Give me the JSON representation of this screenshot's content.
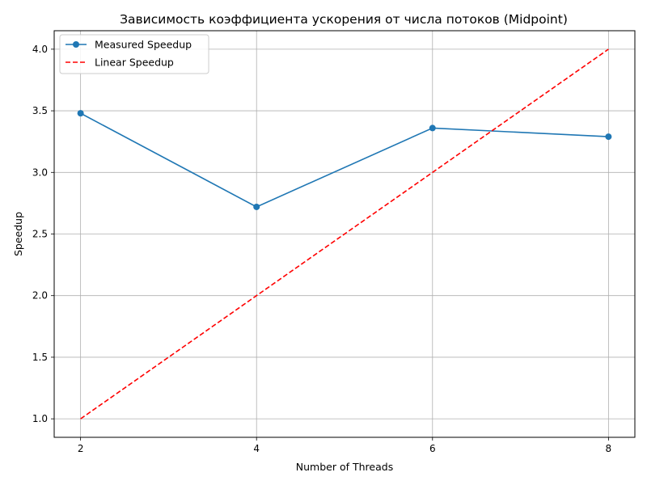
{
  "chart_data": {
    "type": "line",
    "title": "Зависимость коэффициента ускорения от числа потоков (Midpoint)",
    "xlabel": "Number of Threads",
    "ylabel": "Speedup",
    "x": [
      2,
      4,
      6,
      8
    ],
    "xticks": [
      "2",
      "4",
      "6",
      "8"
    ],
    "yticks": [
      "1.0",
      "1.5",
      "2.0",
      "2.5",
      "3.0",
      "3.5",
      "4.0"
    ],
    "xlim": [
      1.7,
      8.3
    ],
    "ylim": [
      0.85,
      4.15
    ],
    "grid": true,
    "legend_position": "top-left",
    "series": [
      {
        "name": "Measured Speedup",
        "values": [
          3.48,
          2.72,
          3.36,
          3.29
        ],
        "color": "#1f77b4",
        "style": "solid",
        "marker": "circle"
      },
      {
        "name": "Linear Speedup",
        "values": [
          1.0,
          2.0,
          3.0,
          4.0
        ],
        "color": "#ff0000",
        "style": "dashed",
        "marker": "none"
      }
    ]
  }
}
